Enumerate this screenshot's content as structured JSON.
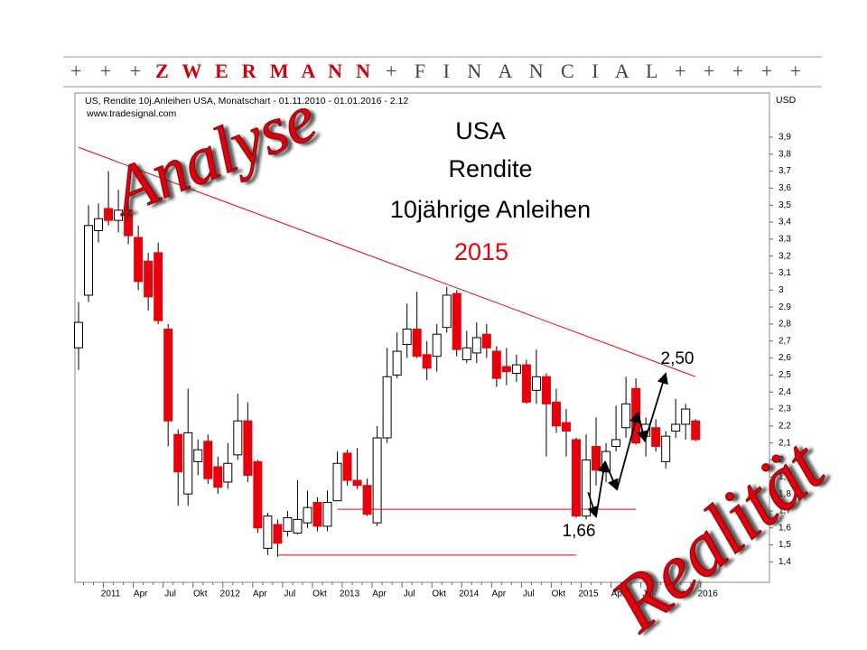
{
  "header": {
    "plus_left": "+ + +",
    "brand": "Z W E R M A N N",
    "rest": "+ F I N A N C I A L + + + + +"
  },
  "stamps": {
    "top": "Analyse",
    "bottom": "Realität"
  },
  "chart_data": {
    "type": "candlestick",
    "info_line": "US, Rendite 10j.Anleihen USA, Monatschart - 01.11.2010 - 01.01.2016 - 2.12",
    "source": "www.tradesignal.com",
    "title_lines": [
      "USA",
      "Rendite",
      "10jährige Anleihen"
    ],
    "subtitle": "2015",
    "y_axis_label": "USD",
    "up_color": "#ffffff",
    "down_color": "#e8000b",
    "categories": [
      null,
      null,
      "2011",
      null,
      null,
      "Apr",
      null,
      null,
      "Jul",
      null,
      null,
      "Okt",
      null,
      null,
      "2012",
      null,
      null,
      "Apr",
      null,
      null,
      "Jul",
      null,
      null,
      "Okt",
      null,
      null,
      "2013",
      null,
      null,
      "Apr",
      null,
      null,
      "Jul",
      null,
      null,
      "Okt",
      null,
      null,
      "2014",
      null,
      null,
      "Apr",
      null,
      null,
      "Jul",
      null,
      null,
      "Okt",
      null,
      null,
      "2015",
      null,
      null,
      "Apr",
      null,
      null,
      "Jul",
      null,
      null,
      "Okt",
      null,
      null,
      "2016"
    ],
    "open": [
      2.66,
      2.97,
      3.35,
      3.48,
      3.41,
      3.45,
      3.31,
      3.17,
      3.22,
      2.77,
      2.15,
      1.8,
      1.99,
      2.11,
      1.96,
      1.87,
      2.03,
      2.23,
      1.99,
      1.48,
      1.62,
      1.58,
      1.57,
      1.63,
      1.75,
      1.61,
      1.76,
      2.04,
      1.88,
      1.85,
      1.63,
      2.13,
      2.5,
      2.68,
      2.77,
      2.62,
      2.61,
      2.78,
      2.98,
      2.59,
      2.63,
      2.74,
      2.64,
      2.55,
      2.51,
      2.56,
      2.41,
      2.49,
      2.34,
      2.22,
      2.12,
      1.67,
      2.08,
      1.93,
      2.08,
      2.19,
      2.42,
      2.14,
      2.19,
      1.99,
      2.17,
      2.21,
      2.23
    ],
    "high": [
      2.93,
      3.5,
      3.51,
      3.7,
      3.59,
      3.58,
      3.38,
      3.22,
      3.28,
      2.8,
      2.18,
      2.42,
      2.12,
      2.15,
      2.02,
      2.1,
      2.39,
      2.34,
      2.0,
      1.69,
      1.65,
      1.7,
      1.88,
      1.82,
      1.78,
      1.82,
      2.05,
      2.06,
      2.07,
      1.89,
      2.2,
      2.66,
      2.75,
      2.92,
      2.99,
      2.7,
      2.8,
      3.02,
      3.0,
      2.76,
      2.81,
      2.8,
      2.67,
      2.66,
      2.62,
      2.59,
      2.65,
      2.51,
      2.42,
      2.3,
      2.13,
      2.15,
      2.25,
      2.1,
      2.32,
      2.49,
      2.48,
      2.25,
      2.24,
      2.17,
      2.36,
      2.33,
      2.24
    ],
    "low": [
      2.53,
      2.93,
      3.28,
      3.38,
      3.34,
      3.27,
      3.0,
      2.88,
      2.8,
      2.08,
      1.73,
      1.73,
      1.91,
      1.86,
      1.8,
      1.83,
      2.0,
      1.87,
      1.57,
      1.44,
      1.43,
      1.55,
      1.56,
      1.6,
      1.58,
      1.58,
      1.76,
      1.85,
      1.83,
      1.67,
      1.61,
      2.1,
      2.48,
      2.6,
      2.6,
      2.47,
      2.52,
      2.75,
      2.61,
      2.57,
      2.57,
      2.6,
      2.43,
      2.44,
      2.46,
      2.33,
      2.33,
      2.02,
      2.16,
      2.02,
      1.66,
      1.65,
      1.85,
      1.87,
      2.05,
      2.13,
      2.09,
      2.02,
      2.05,
      1.95,
      2.13,
      2.12,
      2.11
    ],
    "close": [
      2.81,
      3.38,
      3.42,
      3.41,
      3.47,
      3.32,
      3.05,
      2.96,
      2.82,
      2.23,
      1.93,
      2.16,
      2.06,
      1.89,
      1.84,
      1.98,
      2.23,
      1.91,
      1.6,
      1.67,
      1.51,
      1.66,
      1.65,
      1.72,
      1.61,
      1.75,
      1.98,
      1.88,
      1.85,
      1.68,
      2.13,
      2.49,
      2.64,
      2.77,
      2.61,
      2.54,
      2.74,
      2.97,
      2.65,
      2.66,
      2.72,
      2.66,
      2.48,
      2.52,
      2.56,
      2.34,
      2.49,
      2.33,
      2.2,
      2.17,
      1.67,
      2.0,
      1.94,
      2.05,
      2.12,
      2.33,
      2.1,
      2.21,
      2.08,
      2.14,
      2.21,
      2.3,
      2.12
    ],
    "ylim": [
      1.28,
      4.16
    ],
    "yticks": [
      {
        "value": 1.4,
        "label": "1,4"
      },
      {
        "value": 1.5,
        "label": "1,5"
      },
      {
        "value": 1.6,
        "label": "1,6"
      },
      {
        "value": 1.7,
        "label": "1,7"
      },
      {
        "value": 1.8,
        "label": "1,8"
      },
      {
        "value": 1.9,
        "label": "1,9"
      },
      2,
      {
        "value": 2.1,
        "label": "2,1"
      },
      {
        "value": 2.2,
        "label": "2,2"
      },
      {
        "value": 2.3,
        "label": "2,3"
      },
      {
        "value": 2.4,
        "label": "2,4"
      },
      {
        "value": 2.5,
        "label": "2,5"
      },
      {
        "value": 2.6,
        "label": "2,6"
      },
      {
        "value": 2.7,
        "label": "2,7"
      },
      {
        "value": 2.8,
        "label": "2,8"
      },
      {
        "value": 2.9,
        "label": "2,9"
      },
      3,
      {
        "value": 3.1,
        "label": "3,1"
      },
      {
        "value": 3.2,
        "label": "3,2"
      },
      {
        "value": 3.3,
        "label": "3,3"
      },
      {
        "value": 3.4,
        "label": "3,4"
      },
      {
        "value": 3.5,
        "label": "3,5"
      },
      {
        "value": 3.6,
        "label": "3,6"
      },
      {
        "value": 3.7,
        "label": "3,7"
      },
      {
        "value": 3.8,
        "label": "3,8"
      },
      {
        "value": 3.9,
        "label": "3,9"
      }
    ],
    "lines": [
      {
        "color": "#e8000b",
        "points": [
          [
            0,
            3.84
          ],
          [
            62,
            2.49
          ]
        ]
      },
      {
        "color": "#e8000b",
        "points": [
          [
            26,
            1.71
          ],
          [
            56,
            1.71
          ]
        ]
      },
      {
        "color": "#e8000b",
        "points": [
          [
            20,
            1.44
          ],
          [
            50,
            1.44
          ]
        ]
      },
      {
        "color": "#000000",
        "arrows": true,
        "points": [
          [
            51.2,
            1.81
          ],
          [
            52,
            1.665
          ],
          [
            52.9,
            1.99
          ],
          [
            54.1,
            1.825
          ],
          [
            56.2,
            2.28
          ],
          [
            56.9,
            2.11
          ],
          [
            59,
            2.51
          ]
        ]
      }
    ],
    "annotations": [
      "2,50",
      "1,66"
    ]
  }
}
